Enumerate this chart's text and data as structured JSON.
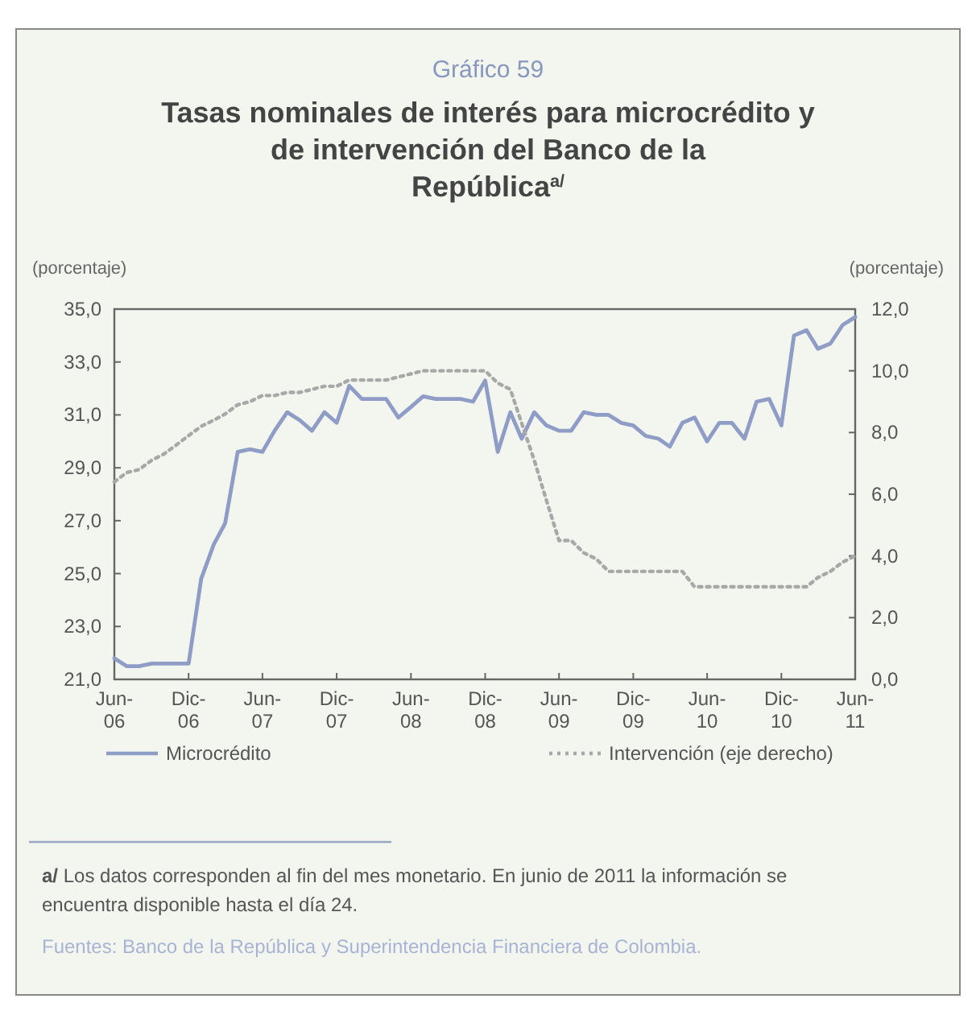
{
  "chart_data": {
    "type": "line",
    "subtitle": "Gráfico 59",
    "title": "Tasas nominales de interés para microcrédito y de intervención del Banco de la República$^{a/}$",
    "ylabel": "(porcentaje)",
    "y2label": "(porcentaje)",
    "x": [
      "2006-06",
      "2006-07",
      "2006-08",
      "2006-09",
      "2006-10",
      "2006-11",
      "2006-12",
      "2007-01",
      "2007-02",
      "2007-03",
      "2007-04",
      "2007-05",
      "2007-06",
      "2007-07",
      "2007-08",
      "2007-09",
      "2007-10",
      "2007-11",
      "2007-12",
      "2008-01",
      "2008-02",
      "2008-03",
      "2008-04",
      "2008-05",
      "2008-06",
      "2008-07",
      "2008-08",
      "2008-09",
      "2008-10",
      "2008-11",
      "2008-12",
      "2009-01",
      "2009-02",
      "2009-03",
      "2009-04",
      "2009-05",
      "2009-06",
      "2009-07",
      "2009-08",
      "2009-09",
      "2009-10",
      "2009-11",
      "2009-12",
      "2010-01",
      "2010-02",
      "2010-03",
      "2010-04",
      "2010-05",
      "2010-06",
      "2010-07",
      "2010-08",
      "2010-09",
      "2010-10",
      "2010-11",
      "2010-12",
      "2011-01",
      "2011-02",
      "2011-03",
      "2011-04",
      "2011-05",
      "2011-06"
    ],
    "series": [
      {
        "name": "Microcrédito",
        "color": "#8e9cc6",
        "line_style": "solid",
        "values": [
          21.8,
          21.5,
          21.5,
          21.6,
          21.6,
          21.6,
          21.6,
          24.8,
          26.1,
          26.9,
          29.6,
          29.7,
          29.6,
          30.4,
          31.1,
          30.8,
          30.4,
          31.1,
          30.7,
          32.1,
          31.6,
          31.6,
          31.6,
          30.9,
          31.3,
          31.7,
          31.6,
          31.6,
          31.6,
          31.5,
          32.3,
          29.6,
          31.1,
          30.1,
          31.1,
          30.6,
          30.4,
          30.4,
          31.1,
          31.0,
          31.0,
          30.7,
          30.6,
          30.2,
          30.1,
          29.8,
          30.7,
          30.9,
          30.0,
          30.7,
          30.7,
          30.1,
          31.5,
          31.6,
          30.6,
          34.0,
          34.2,
          33.5,
          33.7,
          34.4,
          34.7
        ]
      },
      {
        "name": "Intervención (eje derecho)",
        "color": "#a8a8a8",
        "line_style": "dotted",
        "axis": "y2",
        "values": [
          6.4,
          6.7,
          6.8,
          7.1,
          7.3,
          7.6,
          7.9,
          8.2,
          8.4,
          8.6,
          8.9,
          9.0,
          9.2,
          9.2,
          9.3,
          9.3,
          9.4,
          9.5,
          9.5,
          9.7,
          9.7,
          9.7,
          9.7,
          9.8,
          9.9,
          10.0,
          10.0,
          10.0,
          10.0,
          10.0,
          10.0,
          9.6,
          9.4,
          8.3,
          7.1,
          5.8,
          4.5,
          4.5,
          4.1,
          3.9,
          3.5,
          3.5,
          3.5,
          3.5,
          3.5,
          3.5,
          3.5,
          3.0,
          3.0,
          3.0,
          3.0,
          3.0,
          3.0,
          3.0,
          3.0,
          3.0,
          3.0,
          3.3,
          3.5,
          3.8,
          4.0
        ]
      }
    ],
    "xlim": [
      "2006-06",
      "2011-06"
    ],
    "xticks": [
      {
        "value": "2006-06",
        "label": "Jun-06"
      },
      {
        "value": "2006-12",
        "label": "Dic-06"
      },
      {
        "value": "2007-06",
        "label": "Jun-07"
      },
      {
        "value": "2007-12",
        "label": "Dic-07"
      },
      {
        "value": "2008-06",
        "label": "Jun-08"
      },
      {
        "value": "2008-12",
        "label": "Dic-08"
      },
      {
        "value": "2009-06",
        "label": "Jun-09"
      },
      {
        "value": "2009-12",
        "label": "Dic-09"
      },
      {
        "value": "2010-06",
        "label": "Jun-10"
      },
      {
        "value": "2010-12",
        "label": "Dic-10"
      },
      {
        "value": "2011-06",
        "label": "Jun-11"
      }
    ],
    "ylim": [
      21,
      35
    ],
    "yticks": [
      {
        "value": 21,
        "label": "21,0"
      },
      {
        "value": 23,
        "label": "23,0"
      },
      {
        "value": 25,
        "label": "25,0"
      },
      {
        "value": 27,
        "label": "27,0"
      },
      {
        "value": 29,
        "label": "29,0"
      },
      {
        "value": 31,
        "label": "31,0"
      },
      {
        "value": 33,
        "label": "33,0"
      },
      {
        "value": 35,
        "label": "35,0"
      }
    ],
    "y2lim": [
      0,
      12
    ],
    "y2ticks": [
      {
        "value": 0,
        "label": "0,0"
      },
      {
        "value": 2,
        "label": "2,0"
      },
      {
        "value": 4,
        "label": "4,0"
      },
      {
        "value": 6,
        "label": "6,0"
      },
      {
        "value": 8,
        "label": "8,0"
      },
      {
        "value": 10,
        "label": "10,0"
      },
      {
        "value": 12,
        "label": "12,0"
      }
    ],
    "grid": false,
    "legend": "bottom",
    "marker": "none",
    "annotations": [
      "a/ Los datos corresponden al fin del mes monetario. En junio de 2011 la información se encuentra disponible hasta el día 24.",
      "Fuentes: Banco de la República y Superintendencia Financiera de Colombia."
    ]
  }
}
